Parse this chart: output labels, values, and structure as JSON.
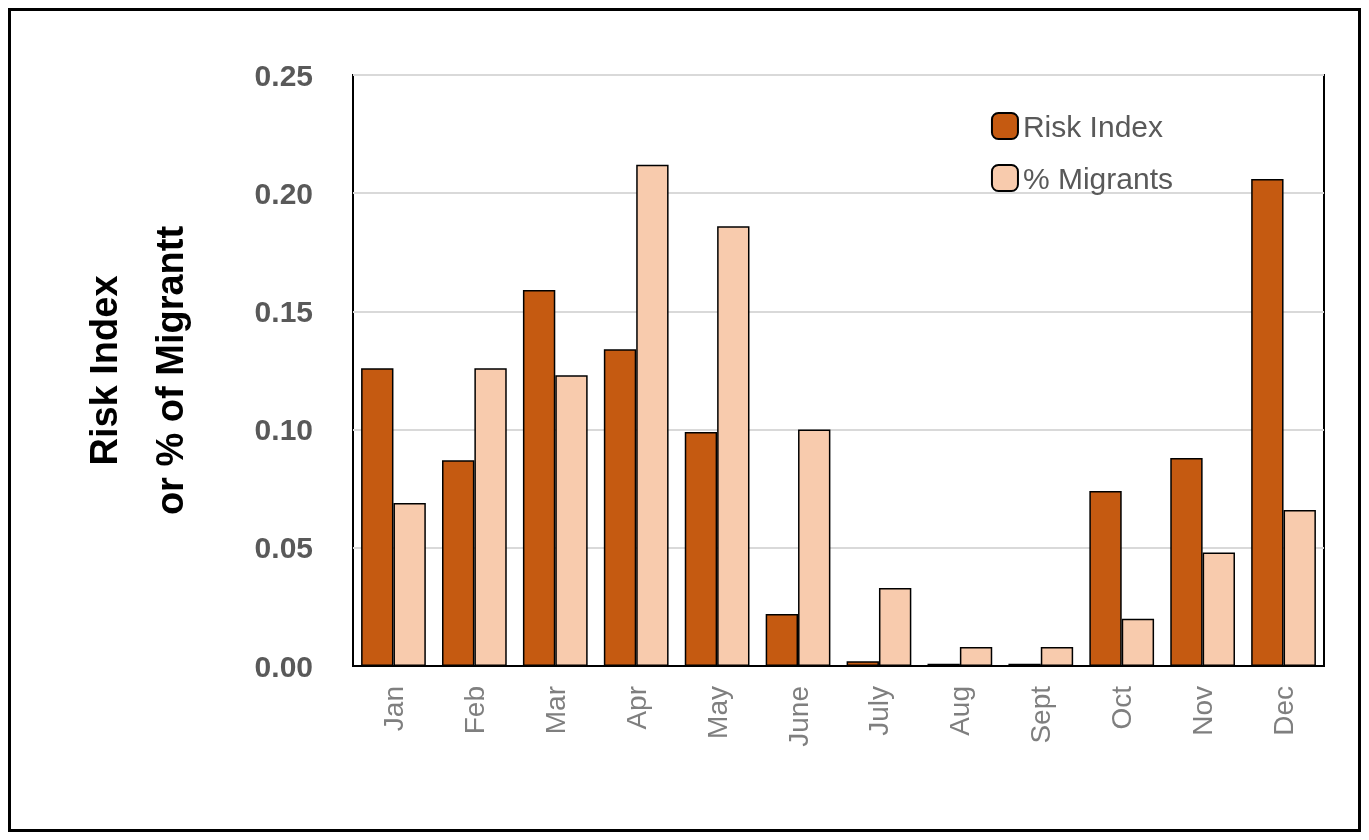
{
  "chart_data": {
    "type": "bar",
    "ylabel": "Risk Index\nor % of Migrantt",
    "categories": [
      "Jan",
      "Feb",
      "Mar",
      "Apr",
      "May",
      "June",
      "July",
      "Aug",
      "Sept",
      "Oct",
      "Nov",
      "Dec"
    ],
    "series": [
      {
        "name": "Risk Index",
        "color": "#c55a11",
        "values": [
          0.126,
          0.087,
          0.159,
          0.134,
          0.099,
          0.022,
          0.002,
          0.001,
          0.001,
          0.074,
          0.088,
          0.206
        ]
      },
      {
        "name": "% Migrants",
        "color": "#f8cbad",
        "values": [
          0.069,
          0.126,
          0.123,
          0.212,
          0.186,
          0.1,
          0.033,
          0.008,
          0.008,
          0.02,
          0.048,
          0.066
        ]
      }
    ],
    "ylim": [
      0,
      0.25
    ],
    "yticks": [
      {
        "value": 0,
        "label": "0.00"
      },
      0.05,
      {
        "value": 0.1,
        "label": "0.10"
      },
      0.15,
      {
        "value": 0.2,
        "label": "0.20"
      },
      0.25
    ],
    "grid": "y",
    "legend": "top right"
  }
}
